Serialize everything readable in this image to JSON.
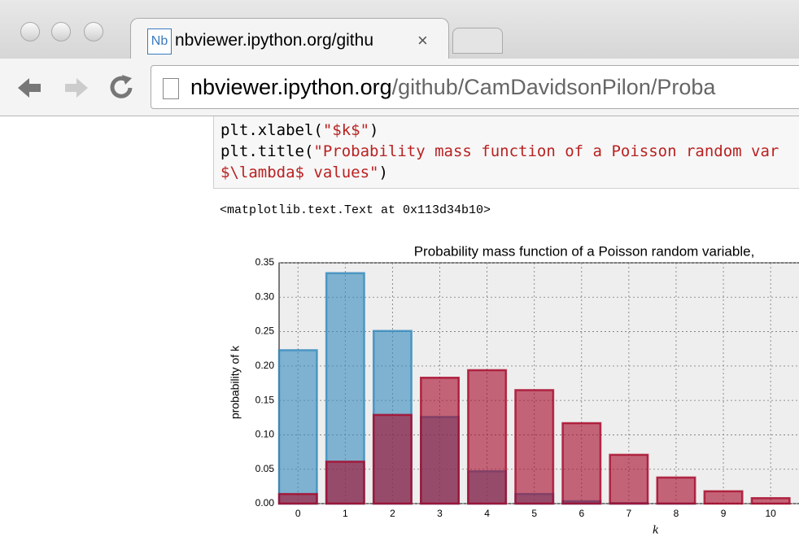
{
  "browser": {
    "tab_title": "nbviewer.ipython.org/githu",
    "tab_close": "×",
    "url_host": "nbviewer.ipython.org",
    "url_path": "/github/CamDavidsonPilon/Proba"
  },
  "code": {
    "lines": [
      [
        "plt.xlabel(",
        "\"$k$\"",
        ")"
      ],
      [
        "plt.title(",
        "\"Probability mass function of a Poisson random var"
      ],
      [
        "$\\lambda$ values\"",
        ")"
      ]
    ]
  },
  "output": "<matplotlib.text.Text at 0x113d34b10>",
  "chart_data": {
    "type": "bar",
    "title": "Probability mass function of a Poisson random variable,",
    "xlabel": "k",
    "ylabel": "probability of k",
    "x": [
      0,
      1,
      2,
      3,
      4,
      5,
      6,
      7,
      8,
      9,
      10
    ],
    "series": [
      {
        "color": "#348ABD",
        "values": [
          0.223,
          0.335,
          0.251,
          0.126,
          0.047,
          0.014,
          0.0035,
          0.0008,
          0.0001,
          0,
          0
        ]
      },
      {
        "color": "#A60628",
        "values": [
          0.014,
          0.061,
          0.129,
          0.183,
          0.194,
          0.165,
          0.117,
          0.071,
          0.038,
          0.018,
          0.008
        ]
      }
    ],
    "xlim": [
      -0.4,
      10.6
    ],
    "xticks": [
      0,
      1,
      2,
      3,
      4,
      5,
      6,
      7,
      8,
      9,
      10
    ],
    "ylim": [
      0,
      0.35
    ],
    "yticks": [
      {
        "value": 0,
        "label": "0.00"
      },
      {
        "value": 0.05,
        "label": "0.05"
      },
      {
        "value": 0.1,
        "label": "0.10"
      },
      {
        "value": 0.15,
        "label": "0.15"
      },
      {
        "value": 0.2,
        "label": "0.20"
      },
      {
        "value": 0.25,
        "label": "0.25"
      },
      {
        "value": 0.3,
        "label": "0.30"
      },
      {
        "value": 0.35,
        "label": "0.35"
      }
    ],
    "grid": true
  }
}
